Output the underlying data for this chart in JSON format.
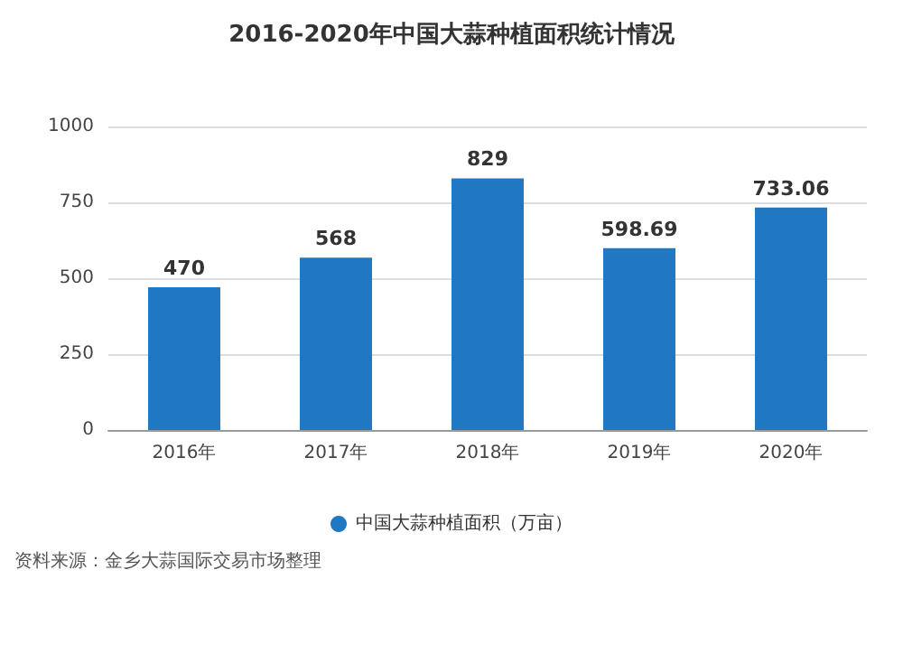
{
  "chart_data": {
    "type": "bar",
    "title": "2016-2020年中国大蒜种植面积统计情况",
    "categories": [
      "2016年",
      "2017年",
      "2018年",
      "2019年",
      "2020年"
    ],
    "series": [
      {
        "name": "中国大蒜种植面积（万亩）",
        "color": "#1f78c1",
        "values": [
          470,
          568,
          829,
          598.69,
          733.06
        ]
      }
    ],
    "ylim": [
      0,
      1000
    ],
    "yticks": [
      0,
      250,
      500,
      750,
      1000
    ],
    "grid": "y",
    "legend": "bottom",
    "data_labels": true,
    "annotations": [
      "资料来源：金乡大蒜国际交易市场整理"
    ]
  }
}
